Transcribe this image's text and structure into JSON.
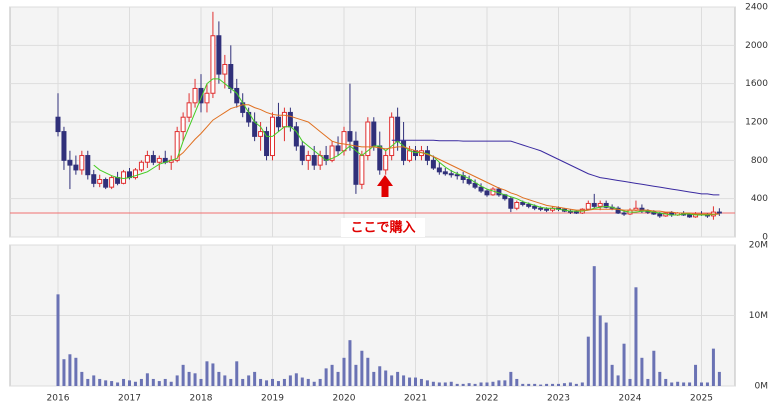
{
  "chart_data": {
    "type": "candlestick",
    "categories": [
      "2016",
      null,
      null,
      null,
      null,
      null,
      null,
      null,
      null,
      null,
      null,
      null,
      "2017",
      null,
      null,
      null,
      null,
      null,
      null,
      null,
      null,
      null,
      null,
      null,
      "2018",
      null,
      null,
      null,
      null,
      null,
      null,
      null,
      null,
      null,
      null,
      null,
      "2019",
      null,
      null,
      null,
      null,
      null,
      null,
      null,
      null,
      null,
      null,
      null,
      "2020",
      null,
      null,
      null,
      null,
      null,
      null,
      null,
      null,
      null,
      null,
      null,
      "2021",
      null,
      null,
      null,
      null,
      null,
      null,
      null,
      null,
      null,
      null,
      null,
      "2022",
      null,
      null,
      null,
      null,
      null,
      null,
      null,
      null,
      null,
      null,
      null,
      "2023",
      null,
      null,
      null,
      null,
      null,
      null,
      null,
      null,
      null,
      null,
      null,
      "2024",
      null,
      null,
      null,
      null,
      null,
      null,
      null,
      null,
      null,
      null,
      null,
      "2025",
      null,
      null,
      null
    ],
    "open": [
      1250,
      1100,
      800,
      750,
      700,
      850,
      650,
      560,
      600,
      520,
      620,
      560,
      680,
      620,
      700,
      780,
      850,
      780,
      820,
      780,
      800,
      1100,
      1250,
      1400,
      1550,
      1400,
      1500,
      2100,
      1700,
      1800,
      1550,
      1400,
      1300,
      1200,
      1050,
      1100,
      850,
      1250,
      1150,
      1300,
      1150,
      950,
      800,
      850,
      750,
      850,
      800,
      950,
      900,
      1100,
      1000,
      550,
      850,
      1200,
      950,
      700,
      850,
      1250,
      1000,
      800,
      900,
      850,
      900,
      800,
      720,
      680,
      660,
      650,
      640,
      600,
      560,
      520,
      480,
      440,
      500,
      440,
      400,
      300,
      360,
      340,
      320,
      300,
      290,
      280,
      300,
      290,
      270,
      260,
      250,
      290,
      350,
      320,
      350,
      310,
      300,
      250,
      240,
      280,
      300,
      270,
      260,
      240,
      220,
      250,
      230,
      250,
      230,
      210,
      240,
      230,
      220,
      260
    ],
    "high": [
      1500,
      1150,
      900,
      850,
      900,
      900,
      700,
      650,
      620,
      640,
      680,
      700,
      720,
      720,
      800,
      900,
      900,
      850,
      900,
      850,
      1150,
      1300,
      1500,
      1650,
      1700,
      1600,
      2350,
      2250,
      1900,
      2000,
      1650,
      1500,
      1350,
      1300,
      1200,
      1150,
      1300,
      1400,
      1350,
      1350,
      1200,
      1000,
      900,
      950,
      900,
      950,
      1000,
      1050,
      1150,
      1600,
      1100,
      900,
      1250,
      1250,
      1100,
      900,
      1300,
      1350,
      1200,
      950,
      950,
      950,
      950,
      850,
      780,
      720,
      700,
      680,
      680,
      640,
      600,
      560,
      500,
      520,
      520,
      450,
      420,
      380,
      380,
      360,
      340,
      320,
      310,
      320,
      320,
      300,
      290,
      280,
      300,
      380,
      450,
      380,
      380,
      340,
      320,
      280,
      300,
      380,
      340,
      290,
      280,
      260,
      260,
      270,
      260,
      270,
      250,
      260,
      270,
      250,
      320,
      300
    ],
    "low": [
      1050,
      700,
      500,
      650,
      650,
      600,
      520,
      520,
      500,
      500,
      540,
      550,
      600,
      600,
      680,
      720,
      750,
      700,
      760,
      700,
      780,
      1000,
      1200,
      1350,
      1300,
      1300,
      1450,
      1600,
      1550,
      1500,
      1350,
      1250,
      1150,
      1000,
      900,
      800,
      800,
      1100,
      1000,
      1100,
      900,
      750,
      700,
      700,
      700,
      750,
      780,
      850,
      850,
      900,
      450,
      500,
      800,
      900,
      650,
      650,
      800,
      900,
      750,
      780,
      800,
      800,
      750,
      700,
      650,
      640,
      620,
      600,
      560,
      540,
      500,
      460,
      420,
      430,
      420,
      380,
      260,
      280,
      320,
      300,
      280,
      270,
      260,
      260,
      270,
      260,
      240,
      240,
      240,
      280,
      300,
      280,
      300,
      280,
      240,
      220,
      230,
      270,
      250,
      240,
      230,
      200,
      210,
      210,
      220,
      220,
      200,
      200,
      220,
      200,
      180,
      220
    ],
    "close": [
      1100,
      800,
      750,
      700,
      850,
      650,
      560,
      600,
      520,
      620,
      560,
      680,
      620,
      700,
      780,
      850,
      780,
      820,
      780,
      800,
      1100,
      1250,
      1400,
      1550,
      1400,
      1500,
      2100,
      1700,
      1800,
      1550,
      1400,
      1300,
      1200,
      1050,
      1100,
      850,
      1250,
      1150,
      1300,
      1150,
      950,
      800,
      850,
      750,
      850,
      800,
      950,
      900,
      1100,
      1000,
      550,
      850,
      1200,
      950,
      700,
      850,
      1250,
      1000,
      800,
      900,
      850,
      900,
      800,
      720,
      680,
      660,
      650,
      640,
      600,
      560,
      520,
      480,
      440,
      500,
      440,
      400,
      300,
      360,
      340,
      320,
      300,
      290,
      280,
      300,
      290,
      270,
      260,
      250,
      290,
      350,
      320,
      350,
      310,
      300,
      250,
      240,
      280,
      300,
      270,
      260,
      240,
      220,
      250,
      230,
      250,
      230,
      210,
      240,
      230,
      220,
      260,
      250
    ],
    "up_color": "#e03030",
    "down_color": "#30307a",
    "moving_averages": [
      {
        "color": "#44cc22",
        "values": [
          null,
          null,
          null,
          null,
          null,
          null,
          750,
          700,
          670,
          640,
          620,
          610,
          620,
          640,
          660,
          680,
          720,
          760,
          780,
          800,
          820,
          1000,
          1150,
          1300,
          1450,
          1600,
          1650,
          1650,
          1600,
          1550,
          1500,
          1400,
          1300,
          1200,
          1150,
          1050,
          1050,
          1100,
          1150,
          1150,
          1100,
          1000,
          950,
          900,
          850,
          800,
          820,
          850,
          900,
          950,
          900,
          850,
          900,
          950,
          950,
          900,
          950,
          1000,
          950,
          900,
          880,
          880,
          870,
          840,
          780,
          730,
          690,
          660,
          640,
          610,
          570,
          530,
          500,
          480,
          460,
          440,
          420,
          400,
          370,
          350,
          330,
          310,
          300,
          300,
          290,
          280,
          270,
          270,
          270,
          280,
          300,
          310,
          320,
          310,
          290,
          270,
          260,
          260,
          270,
          270,
          260,
          250,
          240,
          230,
          230,
          240,
          240,
          230,
          230,
          230,
          235,
          240
        ]
      },
      {
        "color": "#e07020",
        "values": [
          null,
          null,
          null,
          null,
          null,
          null,
          null,
          null,
          null,
          null,
          null,
          null,
          null,
          null,
          null,
          null,
          null,
          null,
          null,
          null,
          830,
          880,
          950,
          1020,
          1080,
          1150,
          1220,
          1260,
          1300,
          1340,
          1360,
          1380,
          1380,
          1350,
          1330,
          1300,
          1280,
          1270,
          1270,
          1260,
          1240,
          1220,
          1200,
          1150,
          1100,
          1050,
          1000,
          980,
          970,
          960,
          950,
          940,
          940,
          940,
          930,
          920,
          930,
          940,
          940,
          920,
          900,
          880,
          860,
          840,
          810,
          780,
          750,
          720,
          690,
          660,
          630,
          600,
          570,
          540,
          510,
          490,
          460,
          440,
          410,
          390,
          370,
          350,
          330,
          320,
          310,
          300,
          290,
          280,
          280,
          280,
          290,
          290,
          290,
          290,
          290,
          280,
          280,
          280,
          280,
          280,
          270,
          270,
          260,
          260,
          250,
          250,
          250,
          240,
          240,
          240,
          240,
          240
        ]
      },
      {
        "color": "#3a2aa0",
        "values": [
          null,
          null,
          null,
          null,
          null,
          null,
          null,
          null,
          null,
          null,
          null,
          null,
          null,
          null,
          null,
          null,
          null,
          null,
          null,
          null,
          null,
          null,
          null,
          null,
          null,
          null,
          null,
          null,
          null,
          null,
          null,
          null,
          null,
          null,
          null,
          null,
          null,
          null,
          null,
          null,
          null,
          null,
          null,
          null,
          null,
          null,
          null,
          null,
          null,
          null,
          null,
          null,
          null,
          null,
          null,
          null,
          1010,
          1010,
          1010,
          1010,
          1010,
          1010,
          1010,
          1010,
          1005,
          1005,
          1005,
          1005,
          1000,
          1000,
          1000,
          1000,
          1000,
          1000,
          1000,
          1000,
          1000,
          980,
          960,
          940,
          920,
          900,
          870,
          840,
          810,
          780,
          750,
          720,
          690,
          660,
          640,
          620,
          610,
          600,
          590,
          580,
          570,
          560,
          550,
          540,
          530,
          520,
          510,
          500,
          490,
          480,
          470,
          460,
          450,
          450,
          440,
          440
        ]
      }
    ],
    "reference_line": {
      "value": 250,
      "color": "#f07070"
    },
    "annotation": "ここで購入",
    "ylim": [
      0,
      2400
    ],
    "yticks": [
      0,
      400,
      800,
      1200,
      1600,
      2000,
      2400
    ],
    "volume": {
      "color": "#6a72b4",
      "values": [
        13000000,
        3800000,
        4500000,
        4000000,
        2000000,
        1000000,
        1500000,
        1000000,
        800000,
        700000,
        500000,
        1000000,
        800000,
        600000,
        1000000,
        1800000,
        1000000,
        700000,
        1000000,
        600000,
        1500000,
        3000000,
        2000000,
        1800000,
        1000000,
        3500000,
        3200000,
        2000000,
        1500000,
        1000000,
        3500000,
        1000000,
        1500000,
        2000000,
        1000000,
        800000,
        1000000,
        700000,
        1000000,
        1500000,
        1800000,
        1200000,
        1000000,
        600000,
        1000000,
        2500000,
        3000000,
        2000000,
        4000000,
        6500000,
        3000000,
        5000000,
        4000000,
        2000000,
        2800000,
        2200000,
        1500000,
        2000000,
        1500000,
        1200000,
        1200000,
        1000000,
        800000,
        600000,
        500000,
        500000,
        600000,
        300000,
        300000,
        400000,
        300000,
        500000,
        500000,
        600000,
        800000,
        800000,
        2000000,
        1000000,
        300000,
        300000,
        300000,
        200000,
        300000,
        300000,
        300000,
        400000,
        500000,
        300000,
        500000,
        7000000,
        17000000,
        10000000,
        9000000,
        3000000,
        1500000,
        6000000,
        1000000,
        14000000,
        4000000,
        1000000,
        5000000,
        2000000,
        1000000,
        500000,
        600000,
        500000,
        500000,
        3000000,
        500000,
        500000,
        5300000,
        2000000
      ],
      "ylim": [
        0,
        20000000
      ],
      "yticks": [
        {
          "value": 0,
          "label": "0M"
        },
        {
          "value": 10000000,
          "label": "10M"
        },
        {
          "value": 20000000,
          "label": "20M"
        }
      ]
    }
  }
}
